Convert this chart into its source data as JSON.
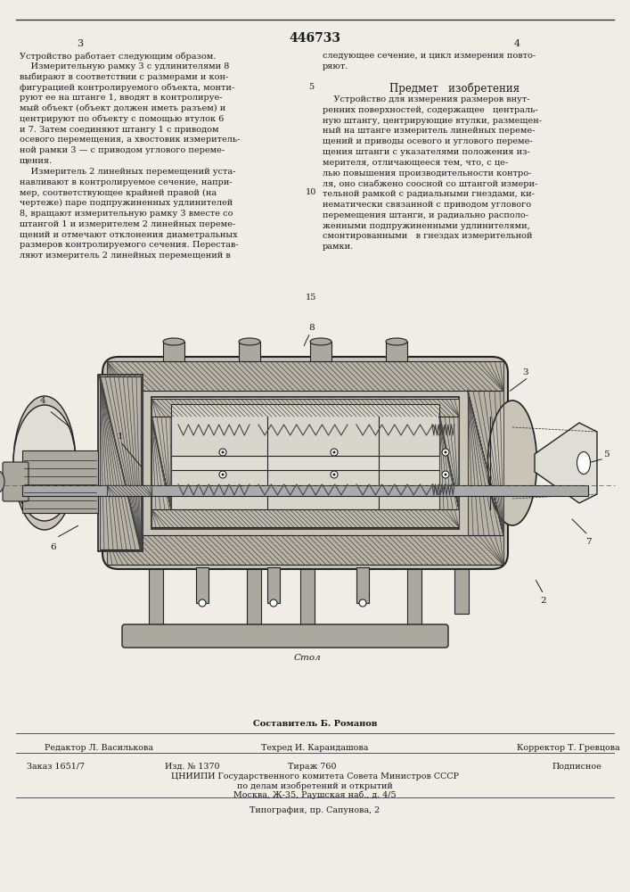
{
  "patent_number": "446733",
  "page_numbers": [
    "3",
    "4"
  ],
  "bg_color": "#f0ede6",
  "text_color": "#1a1a1a",
  "title_subject": "Предмет   изобретения",
  "col_left_lines": [
    "Устройство работает следующим образом.",
    "    Измерительную рамку 3 с удлинителями 8",
    "выбирают в соответствии с размерами и кон-",
    "фигурацией контролируемого объекта, монти-",
    "руют ее на штанге 1, вводят в контролируе-",
    "мый объект (объект должен иметь разъем) и",
    "центрируют по объекту с помощью втулок 6",
    "и 7. Затем соединяют штангу 1 с приводом",
    "осевого перемещения, а хвостовик измеритель-",
    "ной рамки 3 — с приводом углового переме-",
    "щения.",
    "    Измеритель 2 линейных перемещений уста-",
    "навливают в контролируемое сечение, напри-",
    "мер, соответствующее крайней правой (на",
    "чертеже) паре подпружиненных удлинителей",
    "8, вращают измерительную рамку 3 вместе со",
    "штангой 1 и измерителем 2 линейных переме-",
    "щений и отмечают отклонения диаметральных",
    "размеров контролируемого сечения. Перестав-",
    "ляют измеритель 2 линейных перемещений в"
  ],
  "col_right_top_lines": [
    "следующее сечение, и цикл измерения повто-",
    "ряют."
  ],
  "col_right_body_lines": [
    "    Устройство для измерения размеров внут-",
    "ренних поверхностей, содержащее   централь-",
    "ную штангу, центрирующие втулки, размещен-",
    "ный на штанге измеритель линейных переме-",
    "щений и приводы осевого и углового переме-",
    "щения штанги с указателями положения из-",
    "мерителя, отличающееся тем, что, с це-",
    "лью повышения производительности контро-",
    "ля, оно снабжено соосной со штангой измери-",
    "тельной рамкой с радиальными гнездами, ки-",
    "нематически связанной с приводом углового",
    "перемещения штанги, и радиально располо-",
    "женными подпружиненными удлинителями,",
    "смонтированными   в гнездах измерительной",
    "рамки."
  ],
  "diagram_label": "Стол",
  "footer_composer_label": "Составитель Б. Романов",
  "footer_editor": "Редактор Л. Василькова",
  "footer_techred": "Техред И. Карандашова",
  "footer_corrector": "Корректор Т. Гревцова",
  "footer_order": "Заказ 1651/7",
  "footer_izd": "Изд. № 1370",
  "footer_tirazh": "Тираж 760",
  "footer_podpisnoe": "Подписное",
  "footer_tsniip": "ЦНИИПИ Государственного комитета Совета Министров СССР",
  "footer_po_delam": "по делам изобретений и открытий",
  "footer_moscow": "Москва, Ж-35, Раушская наб., д. 4/5",
  "footer_tipografiya": "Типография, пр. Сапунова, 2"
}
